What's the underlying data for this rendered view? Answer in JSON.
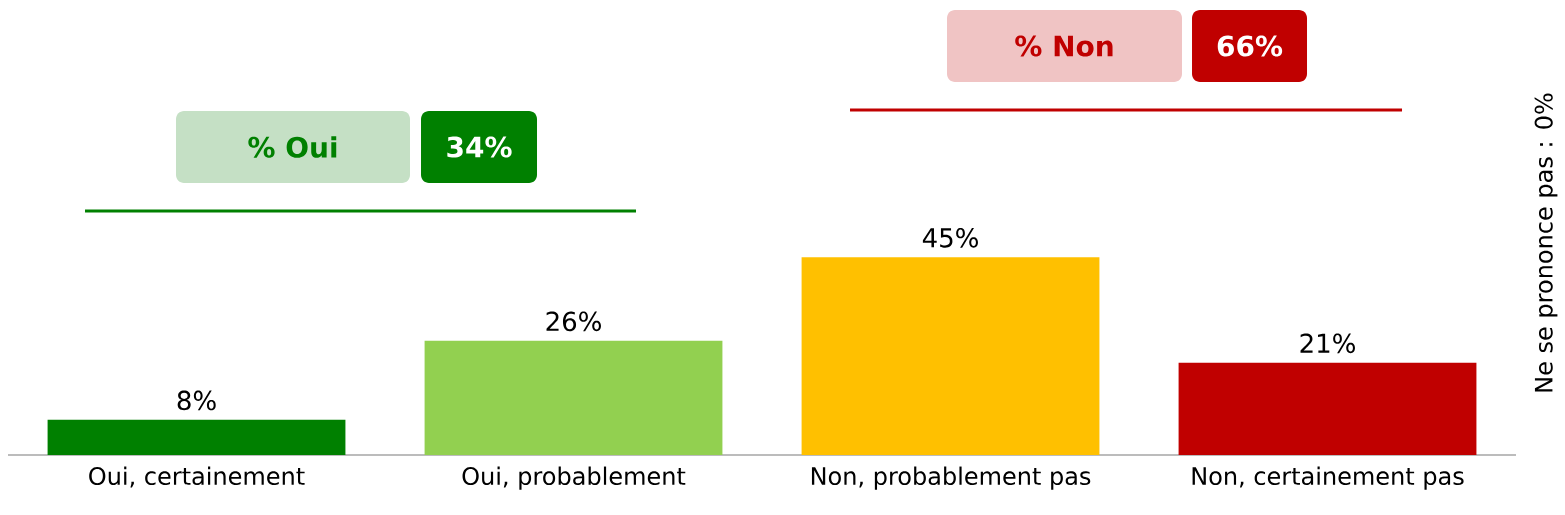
{
  "chart_data": {
    "type": "bar",
    "categories": [
      "Oui, certainement",
      "Oui, probablement",
      "Non, probablement pas",
      "Non, certainement pas"
    ],
    "values": [
      8,
      26,
      45,
      21
    ],
    "colors": [
      "#008000",
      "#92D050",
      "#FFC000",
      "#C00000"
    ],
    "value_labels": [
      "8%",
      "26%",
      "45%",
      "21%"
    ],
    "annotations": [
      "% Oui",
      "34%",
      "% Non",
      "66%",
      "Ne se prononce pas : 0%"
    ]
  }
}
